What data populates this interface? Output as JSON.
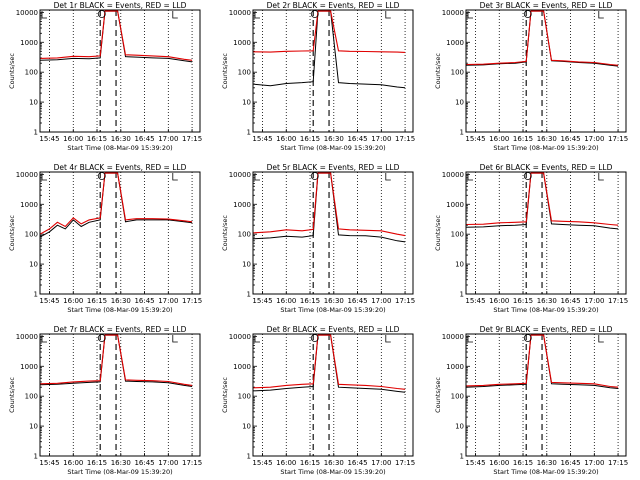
{
  "chart_data": [
    {
      "type": "line",
      "title": "Det 1r BLACK = Events, RED = LLD",
      "xlabel": "Start Time (08-Mar-09 15:39:20)",
      "ylabel": "Counts/sec",
      "yscale": "log",
      "ylim": [
        1,
        12000
      ],
      "xticks": [
        "15:45",
        "16:00",
        "16:15",
        "16:30",
        "16:45",
        "17:00",
        "17:15"
      ],
      "yticks": [
        "1",
        "10",
        "100",
        "1000",
        "10000"
      ],
      "series": [
        {
          "name": "Events",
          "color": "#000000",
          "x": [
            "15:39",
            "15:50",
            "16:00",
            "16:10",
            "16:17",
            "16:20",
            "16:28",
            "16:33",
            "16:40",
            "16:50",
            "17:00",
            "17:10",
            "17:15"
          ],
          "y": [
            250,
            260,
            290,
            280,
            300,
            11000,
            11000,
            330,
            320,
            300,
            290,
            240,
            220
          ]
        },
        {
          "name": "LLD",
          "color": "#e00000",
          "x": [
            "15:39",
            "15:50",
            "16:00",
            "16:10",
            "16:17",
            "16:20",
            "16:28",
            "16:33",
            "16:40",
            "16:50",
            "17:00",
            "17:10",
            "17:15"
          ],
          "y": [
            290,
            300,
            340,
            330,
            350,
            11000,
            11000,
            380,
            370,
            350,
            330,
            270,
            250
          ]
        }
      ]
    },
    {
      "type": "line",
      "title": "Det 2r BLACK = Events, RED = LLD",
      "xlabel": "Start Time (08-Mar-09 15:39:20)",
      "ylabel": "Counts/sec",
      "yscale": "log",
      "ylim": [
        1,
        12000
      ],
      "xticks": [
        "15:45",
        "16:00",
        "16:15",
        "16:30",
        "16:45",
        "17:00",
        "17:15"
      ],
      "yticks": [
        "1",
        "10",
        "100",
        "1000",
        "10000"
      ],
      "series": [
        {
          "name": "Events",
          "color": "#000000",
          "x": [
            "15:39",
            "15:50",
            "16:00",
            "16:10",
            "16:17",
            "16:20",
            "16:28",
            "16:33",
            "16:40",
            "16:50",
            "17:00",
            "17:10",
            "17:15"
          ],
          "y": [
            40,
            35,
            42,
            45,
            48,
            11000,
            11000,
            45,
            42,
            40,
            38,
            32,
            30
          ]
        },
        {
          "name": "LLD",
          "color": "#e00000",
          "x": [
            "15:39",
            "15:50",
            "16:00",
            "16:10",
            "16:17",
            "16:20",
            "16:28",
            "16:33",
            "16:40",
            "16:50",
            "17:00",
            "17:10",
            "17:15"
          ],
          "y": [
            480,
            470,
            500,
            510,
            520,
            11000,
            11000,
            520,
            500,
            490,
            480,
            470,
            460
          ]
        }
      ]
    },
    {
      "type": "line",
      "title": "Det 3r BLACK = Events, RED = LLD",
      "xlabel": "Start Time (08-Mar-09 15:39:20)",
      "ylabel": "Counts/sec",
      "yscale": "log",
      "ylim": [
        1,
        12000
      ],
      "xticks": [
        "15:45",
        "16:00",
        "16:15",
        "16:30",
        "16:45",
        "17:00",
        "17:15"
      ],
      "yticks": [
        "1",
        "10",
        "100",
        "1000",
        "10000"
      ],
      "series": [
        {
          "name": "Events",
          "color": "#000000",
          "x": [
            "15:39",
            "15:50",
            "16:00",
            "16:10",
            "16:17",
            "16:20",
            "16:28",
            "16:33",
            "16:40",
            "16:50",
            "17:00",
            "17:10",
            "17:15"
          ],
          "y": [
            170,
            175,
            190,
            200,
            220,
            11000,
            11000,
            240,
            230,
            210,
            200,
            170,
            160
          ]
        },
        {
          "name": "LLD",
          "color": "#e00000",
          "x": [
            "15:39",
            "15:50",
            "16:00",
            "16:10",
            "16:17",
            "16:20",
            "16:28",
            "16:33",
            "16:40",
            "16:50",
            "17:00",
            "17:10",
            "17:15"
          ],
          "y": [
            180,
            185,
            200,
            210,
            230,
            11000,
            11000,
            250,
            240,
            220,
            210,
            180,
            170
          ]
        }
      ]
    },
    {
      "type": "line",
      "title": "Det 4r BLACK = Events, RED = LLD",
      "xlabel": "Start Time (08-Mar-09 15:39:20)",
      "ylabel": "Counts/sec",
      "yscale": "log",
      "ylim": [
        1,
        12000
      ],
      "xticks": [
        "15:45",
        "16:00",
        "16:15",
        "16:30",
        "16:45",
        "17:00",
        "17:15"
      ],
      "yticks": [
        "1",
        "10",
        "100",
        "1000",
        "10000"
      ],
      "series": [
        {
          "name": "Events",
          "color": "#000000",
          "x": [
            "15:39",
            "15:45",
            "15:50",
            "15:55",
            "16:00",
            "16:05",
            "16:10",
            "16:17",
            "16:20",
            "16:28",
            "16:33",
            "16:40",
            "16:50",
            "17:00",
            "17:10",
            "17:15"
          ],
          "y": [
            80,
            120,
            200,
            150,
            300,
            180,
            250,
            300,
            11000,
            11000,
            260,
            300,
            300,
            300,
            260,
            240
          ]
        },
        {
          "name": "LLD",
          "color": "#e00000",
          "x": [
            "15:39",
            "15:45",
            "15:50",
            "15:55",
            "16:00",
            "16:05",
            "16:10",
            "16:17",
            "16:20",
            "16:28",
            "16:33",
            "16:40",
            "16:50",
            "17:00",
            "17:10",
            "17:15"
          ],
          "y": [
            100,
            150,
            250,
            180,
            350,
            220,
            300,
            350,
            11000,
            11000,
            300,
            330,
            330,
            320,
            280,
            260
          ]
        }
      ]
    },
    {
      "type": "line",
      "title": "Det 5r BLACK = Events, RED = LLD",
      "xlabel": "Start Time (08-Mar-09 15:39:20)",
      "ylabel": "Counts/sec",
      "yscale": "log",
      "ylim": [
        1,
        12000
      ],
      "xticks": [
        "15:45",
        "16:00",
        "16:15",
        "16:30",
        "16:45",
        "17:00",
        "17:15"
      ],
      "yticks": [
        "1",
        "10",
        "100",
        "1000",
        "10000"
      ],
      "series": [
        {
          "name": "Events",
          "color": "#000000",
          "x": [
            "15:39",
            "15:50",
            "16:00",
            "16:10",
            "16:17",
            "16:20",
            "16:28",
            "16:33",
            "16:40",
            "16:50",
            "17:00",
            "17:10",
            "17:15"
          ],
          "y": [
            70,
            75,
            85,
            80,
            90,
            11000,
            11000,
            95,
            90,
            88,
            80,
            60,
            55
          ]
        },
        {
          "name": "LLD",
          "color": "#e00000",
          "x": [
            "15:39",
            "15:50",
            "16:00",
            "16:10",
            "16:17",
            "16:20",
            "16:28",
            "16:33",
            "16:40",
            "16:50",
            "17:00",
            "17:10",
            "17:15"
          ],
          "y": [
            110,
            120,
            140,
            130,
            145,
            11000,
            11000,
            150,
            140,
            135,
            130,
            100,
            90
          ]
        }
      ]
    },
    {
      "type": "line",
      "title": "Det 6r BLACK = Events, RED = LLD",
      "xlabel": "Start Time (08-Mar-09 15:39:20)",
      "ylabel": "Counts/sec",
      "yscale": "log",
      "ylim": [
        1,
        12000
      ],
      "xticks": [
        "15:45",
        "16:00",
        "16:15",
        "16:30",
        "16:45",
        "17:00",
        "17:15"
      ],
      "yticks": [
        "1",
        "10",
        "100",
        "1000",
        "10000"
      ],
      "series": [
        {
          "name": "Events",
          "color": "#000000",
          "x": [
            "15:39",
            "15:50",
            "16:00",
            "16:10",
            "16:17",
            "16:20",
            "16:28",
            "16:33",
            "16:40",
            "16:50",
            "17:00",
            "17:10",
            "17:15"
          ],
          "y": [
            170,
            175,
            190,
            200,
            210,
            11000,
            11000,
            220,
            210,
            200,
            190,
            160,
            150
          ]
        },
        {
          "name": "LLD",
          "color": "#e00000",
          "x": [
            "15:39",
            "15:50",
            "16:00",
            "16:10",
            "16:17",
            "16:20",
            "16:28",
            "16:33",
            "16:40",
            "16:50",
            "17:00",
            "17:10",
            "17:15"
          ],
          "y": [
            210,
            215,
            240,
            250,
            260,
            11000,
            11000,
            280,
            270,
            260,
            240,
            210,
            200
          ]
        }
      ]
    },
    {
      "type": "line",
      "title": "Det 7r BLACK = Events, RED = LLD",
      "xlabel": "Start Time (08-Mar-09 15:39:20)",
      "ylabel": "Counts/sec",
      "yscale": "log",
      "ylim": [
        1,
        12000
      ],
      "xticks": [
        "15:45",
        "16:00",
        "16:15",
        "16:30",
        "16:45",
        "17:00",
        "17:15"
      ],
      "yticks": [
        "1",
        "10",
        "100",
        "1000",
        "10000"
      ],
      "series": [
        {
          "name": "Events",
          "color": "#000000",
          "x": [
            "15:39",
            "15:50",
            "16:00",
            "16:10",
            "16:17",
            "16:20",
            "16:28",
            "16:33",
            "16:40",
            "16:50",
            "17:00",
            "17:10",
            "17:15"
          ],
          "y": [
            240,
            250,
            270,
            290,
            300,
            11000,
            11000,
            320,
            310,
            300,
            280,
            230,
            210
          ]
        },
        {
          "name": "LLD",
          "color": "#e00000",
          "x": [
            "15:39",
            "15:50",
            "16:00",
            "16:10",
            "16:17",
            "16:20",
            "16:28",
            "16:33",
            "16:40",
            "16:50",
            "17:00",
            "17:10",
            "17:15"
          ],
          "y": [
            260,
            270,
            300,
            320,
            330,
            11000,
            11000,
            350,
            340,
            330,
            310,
            250,
            230
          ]
        }
      ]
    },
    {
      "type": "line",
      "title": "Det 8r BLACK = Events, RED = LLD",
      "xlabel": "Start Time (08-Mar-09 15:39:20)",
      "ylabel": "Counts/sec",
      "yscale": "log",
      "ylim": [
        1,
        12000
      ],
      "xticks": [
        "15:45",
        "16:00",
        "16:15",
        "16:30",
        "16:45",
        "17:00",
        "17:15"
      ],
      "yticks": [
        "1",
        "10",
        "100",
        "1000",
        "10000"
      ],
      "series": [
        {
          "name": "Events",
          "color": "#000000",
          "x": [
            "15:39",
            "15:50",
            "16:00",
            "16:10",
            "16:17",
            "16:20",
            "16:28",
            "16:33",
            "16:40",
            "16:50",
            "17:00",
            "17:10",
            "17:15"
          ],
          "y": [
            150,
            160,
            180,
            200,
            210,
            11000,
            11000,
            200,
            190,
            180,
            170,
            145,
            135
          ]
        },
        {
          "name": "LLD",
          "color": "#e00000",
          "x": [
            "15:39",
            "15:50",
            "16:00",
            "16:10",
            "16:17",
            "16:20",
            "16:28",
            "16:33",
            "16:40",
            "16:50",
            "17:00",
            "17:10",
            "17:15"
          ],
          "y": [
            190,
            200,
            230,
            250,
            260,
            11000,
            11000,
            250,
            240,
            230,
            210,
            180,
            170
          ]
        }
      ]
    },
    {
      "type": "line",
      "title": "Det 9r BLACK = Events, RED = LLD",
      "xlabel": "Start Time (08-Mar-09 15:39:20)",
      "ylabel": "Counts/sec",
      "yscale": "log",
      "ylim": [
        1,
        12000
      ],
      "xticks": [
        "15:45",
        "16:00",
        "16:15",
        "16:30",
        "16:45",
        "17:00",
        "17:15"
      ],
      "yticks": [
        "1",
        "10",
        "100",
        "1000",
        "10000"
      ],
      "series": [
        {
          "name": "Events",
          "color": "#000000",
          "x": [
            "15:39",
            "15:50",
            "16:00",
            "16:10",
            "16:17",
            "16:20",
            "16:28",
            "16:33",
            "16:40",
            "16:50",
            "17:00",
            "17:10",
            "17:15"
          ],
          "y": [
            200,
            210,
            230,
            240,
            250,
            11000,
            11000,
            260,
            250,
            240,
            230,
            190,
            180
          ]
        },
        {
          "name": "LLD",
          "color": "#e00000",
          "x": [
            "15:39",
            "15:50",
            "16:00",
            "16:10",
            "16:17",
            "16:20",
            "16:28",
            "16:33",
            "16:40",
            "16:50",
            "17:00",
            "17:10",
            "17:15"
          ],
          "y": [
            220,
            230,
            250,
            260,
            270,
            11000,
            11000,
            290,
            280,
            270,
            260,
            210,
            200
          ]
        }
      ]
    }
  ]
}
